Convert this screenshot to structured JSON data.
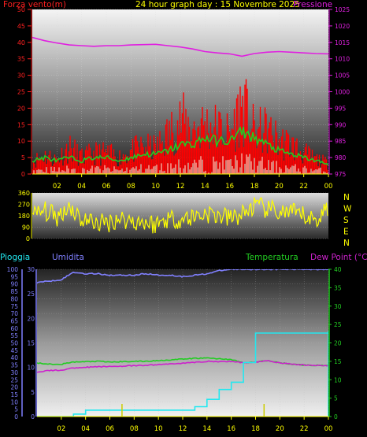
{
  "header": {
    "left_label": "Forza vento",
    "left_unit": "(m)",
    "title": "24 hour graph day : 15 Novembre 2025",
    "right_label": "Pressione"
  },
  "colors": {
    "wind_gust": "#ff0000",
    "wind_avg": "#22cc22",
    "wind_min": "#e8f5e0",
    "pressure": "#e020e0",
    "direction": "#ffff00",
    "humidity": "#8080ff",
    "temperature": "#22cc22",
    "dewpoint": "#cc22cc",
    "rain": "#22e8f0",
    "rain_axis": "#8080ff",
    "temp_axis": "#22cc22"
  },
  "chart_data": [
    {
      "type": "line",
      "title": "24 hour graph day : 15 Novembre 2025",
      "xlabel": "",
      "x_ticks": [
        "02",
        "04",
        "06",
        "08",
        "10",
        "12",
        "14",
        "16",
        "18",
        "20",
        "22",
        "00"
      ],
      "y_ticks_left": [
        "0",
        "5",
        "10",
        "15",
        "20",
        "25",
        "30",
        "35",
        "40",
        "45",
        "50"
      ],
      "y_ticks_right": [
        "975",
        "980",
        "985",
        "990",
        "995",
        "1000",
        "1005",
        "1010",
        "1015",
        "1020",
        "1025"
      ],
      "ylim_left": [
        0,
        50
      ],
      "ylim_right": [
        975,
        1025
      ],
      "x_hours": [
        0,
        1,
        2,
        3,
        4,
        5,
        6,
        7,
        8,
        9,
        10,
        11,
        12,
        13,
        14,
        15,
        16,
        17,
        18,
        19,
        20,
        21,
        22,
        23,
        24
      ],
      "series": [
        {
          "name": "Forza vento",
          "axis": "left",
          "values": [
            6,
            9,
            7,
            13,
            8,
            10,
            10,
            8,
            11,
            13,
            12,
            19,
            26,
            22,
            24,
            22,
            19,
            34,
            20,
            21,
            16,
            14,
            10,
            7,
            5
          ]
        },
        {
          "name": "Pressione",
          "axis": "right",
          "values": [
            1016.5,
            1015.5,
            1014.8,
            1014.2,
            1014.0,
            1013.8,
            1014.0,
            1014.0,
            1014.2,
            1014.3,
            1014.4,
            1014.0,
            1013.6,
            1013.0,
            1012.2,
            1011.8,
            1011.5,
            1010.8,
            1011.6,
            1012.0,
            1012.2,
            1012.0,
            1011.8,
            1011.6,
            1011.5
          ]
        },
        {
          "name": "",
          "axis": "left",
          "values": [
            4,
            5,
            4,
            5,
            4,
            5,
            5,
            4,
            5,
            6,
            6,
            7,
            9,
            9,
            11,
            10,
            10,
            13,
            11,
            9,
            7,
            6,
            5,
            4,
            3
          ]
        }
      ]
    },
    {
      "type": "line",
      "y_ticks": [
        "360",
        "270",
        "180",
        "90",
        "0"
      ],
      "ylim": [
        0,
        360
      ],
      "direction_labels": [
        "N",
        "W",
        "S",
        "E",
        "N"
      ],
      "x_hours": [
        0,
        1,
        2,
        3,
        4,
        5,
        6,
        7,
        8,
        9,
        10,
        11,
        12,
        13,
        14,
        15,
        16,
        17,
        18,
        19,
        20,
        21,
        22,
        23,
        24
      ],
      "series": [
        {
          "name": "",
          "values": [
            180,
            220,
            170,
            260,
            150,
            130,
            120,
            160,
            140,
            130,
            110,
            160,
            150,
            170,
            200,
            180,
            160,
            190,
            260,
            230,
            210,
            200,
            180,
            140,
            260
          ]
        }
      ]
    },
    {
      "type": "line",
      "x_ticks": [
        "02",
        "04",
        "06",
        "08",
        "10",
        "12",
        "14",
        "16",
        "18",
        "20",
        "22",
        "00"
      ],
      "y_ticks_left": [
        "0",
        "5",
        "10",
        "15",
        "20",
        "25",
        "30",
        "35",
        "40",
        "45",
        "50",
        "55",
        "60",
        "65",
        "70",
        "75",
        "80",
        "85",
        "90",
        "95",
        "100"
      ],
      "y_ticks_left2": [
        "0",
        "5",
        "10",
        "15",
        "20",
        "25",
        "30"
      ],
      "y_ticks_right": [
        "0",
        "5",
        "10",
        "15",
        "20",
        "25",
        "30",
        "35",
        "40"
      ],
      "ylim_left": [
        0,
        100
      ],
      "ylim_left2": [
        0,
        30
      ],
      "ylim_right": [
        0,
        40
      ],
      "legend": [
        "Pioggia",
        "Umidita",
        "Temperatura",
        "Dew Point (°C)"
      ],
      "x_hours": [
        0,
        1,
        2,
        3,
        4,
        5,
        6,
        7,
        8,
        9,
        10,
        11,
        12,
        13,
        14,
        15,
        16,
        17,
        18,
        19,
        20,
        21,
        22,
        23,
        24
      ],
      "series": [
        {
          "name": "Umidita",
          "axis": "left",
          "values": [
            91,
            92,
            93,
            98,
            97,
            97,
            96,
            96,
            96,
            97,
            96,
            96,
            95,
            96,
            97,
            99,
            100,
            100,
            100,
            100,
            100,
            100,
            100,
            100,
            100
          ]
        },
        {
          "name": "Temperatura",
          "axis": "right",
          "values": [
            14.5,
            14.3,
            14.2,
            14.8,
            14.9,
            15.0,
            14.8,
            14.9,
            15.0,
            15.0,
            15.2,
            15.4,
            15.6,
            15.8,
            15.9,
            15.7,
            15.5,
            14.6,
            14.8,
            15.2,
            14.6,
            14.2,
            14.0,
            13.9,
            13.8
          ]
        },
        {
          "name": "Dew Point (°C)",
          "axis": "right",
          "values": [
            12.1,
            12.5,
            12.6,
            13.2,
            13.4,
            13.5,
            13.6,
            13.7,
            13.8,
            13.9,
            14.1,
            14.3,
            14.5,
            14.7,
            15.0,
            14.9,
            15.0,
            14.6,
            14.8,
            15.2,
            14.6,
            14.2,
            14.0,
            13.9,
            13.8
          ]
        },
        {
          "name": "Pioggia",
          "axis": "left2",
          "values": [
            0.0,
            0.0,
            0.0,
            0.5,
            1.3,
            1.3,
            1.3,
            1.3,
            1.3,
            1.3,
            1.3,
            1.3,
            1.3,
            2.0,
            3.5,
            5.5,
            7.0,
            11.0,
            17.0,
            17.0,
            17.0,
            17.0,
            17.0,
            17.0,
            17.5
          ]
        }
      ]
    }
  ]
}
